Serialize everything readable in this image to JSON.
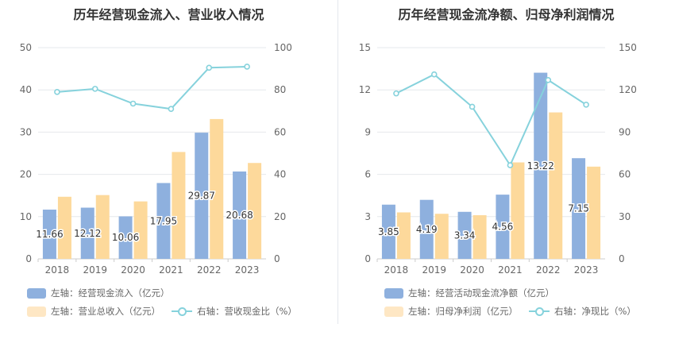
{
  "chart_data": [
    {
      "type": "bar",
      "title": "历年经营现金流入、营业收入情况",
      "categories": [
        "2018",
        "2019",
        "2020",
        "2021",
        "2022",
        "2023"
      ],
      "y_left": {
        "ticks": [
          "0",
          "10",
          "20",
          "30",
          "40",
          "50"
        ],
        "ylim": [
          0,
          50
        ]
      },
      "y_right": {
        "ticks": [
          "0",
          "20",
          "40",
          "60",
          "80",
          "100"
        ],
        "ylim": [
          0,
          100
        ]
      },
      "series": [
        {
          "name": "左轴：经营现金流入（亿元）",
          "type": "bar",
          "axis": "left",
          "color": "#8eb0de",
          "values": [
            11.66,
            12.12,
            10.06,
            17.95,
            29.87,
            20.68
          ],
          "show_labels": true
        },
        {
          "name": "左轴：营业总收入（亿元）",
          "type": "bar",
          "axis": "left",
          "color": "#fdd99b",
          "values": [
            14.7,
            15.1,
            13.6,
            25.3,
            33.1,
            22.7
          ],
          "show_labels": false
        },
        {
          "name": "右轴：营收现金比（%）",
          "type": "line",
          "axis": "right",
          "color": "#86d2dc",
          "values": [
            79.0,
            80.5,
            73.5,
            71.0,
            90.5,
            91.0
          ],
          "show_labels": false
        }
      ],
      "grid": true,
      "legend_position": "bottom-left"
    },
    {
      "type": "bar",
      "title": "历年经营现金流净额、归母净利润情况",
      "categories": [
        "2018",
        "2019",
        "2020",
        "2021",
        "2022",
        "2023"
      ],
      "y_left": {
        "ticks": [
          "0",
          "3",
          "6",
          "9",
          "12",
          "15"
        ],
        "ylim": [
          0,
          15
        ]
      },
      "y_right": {
        "ticks": [
          "0",
          "30",
          "60",
          "90",
          "120",
          "150"
        ],
        "ylim": [
          0,
          150
        ]
      },
      "series": [
        {
          "name": "左轴：经营活动现金流净额（亿元）",
          "type": "bar",
          "axis": "left",
          "color": "#8eb0de",
          "values": [
            3.85,
            4.19,
            3.34,
            4.56,
            13.22,
            7.15
          ],
          "show_labels": true
        },
        {
          "name": "左轴：归母净利润（亿元）",
          "type": "bar",
          "axis": "left",
          "color": "#fdd99b",
          "values": [
            3.3,
            3.2,
            3.1,
            6.85,
            10.4,
            6.55
          ],
          "show_labels": false
        },
        {
          "name": "右轴：净现比（%）",
          "type": "line",
          "axis": "right",
          "color": "#86d2dc",
          "values": [
            117.5,
            131.0,
            108.0,
            66.5,
            127.0,
            109.5
          ],
          "show_labels": false
        }
      ],
      "grid": true,
      "legend_position": "bottom-left"
    }
  ]
}
